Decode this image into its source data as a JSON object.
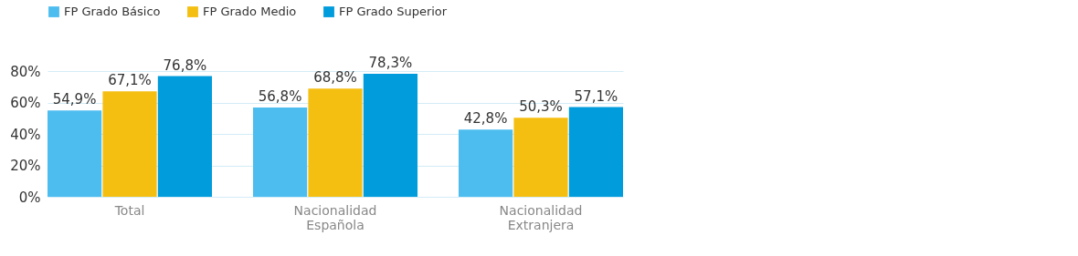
{
  "chart_data": {
    "type": "bar",
    "categories": [
      "Total",
      "Nacionalidad Española",
      "Nacionalidad Extranjera"
    ],
    "series": [
      {
        "name": "FP Grado Básico",
        "color": "#4dbdf0",
        "values": [
          54.9,
          56.8,
          42.8
        ],
        "value_labels": [
          "54,9%",
          "56,8%",
          "42,8%"
        ]
      },
      {
        "name": "FP Grado Medio",
        "color": "#f5bf12",
        "values": [
          67.1,
          68.8,
          50.3
        ],
        "value_labels": [
          "67,1%",
          "68,8%",
          "50,3%"
        ]
      },
      {
        "name": "FP Grado Superior",
        "color": "#009cdc",
        "values": [
          76.8,
          78.3,
          57.1
        ],
        "value_labels": [
          "76,8%",
          "78,3%",
          "57,1%"
        ]
      }
    ],
    "ylim": [
      0,
      80
    ],
    "yticks": [
      {
        "value": 0,
        "label": "0%"
      },
      {
        "value": 20,
        "label": "20%"
      },
      {
        "value": 40,
        "label": "40%"
      },
      {
        "value": 60,
        "label": "60%"
      },
      {
        "value": 80,
        "label": "80%"
      }
    ],
    "grid": "y",
    "legend": "top left"
  }
}
